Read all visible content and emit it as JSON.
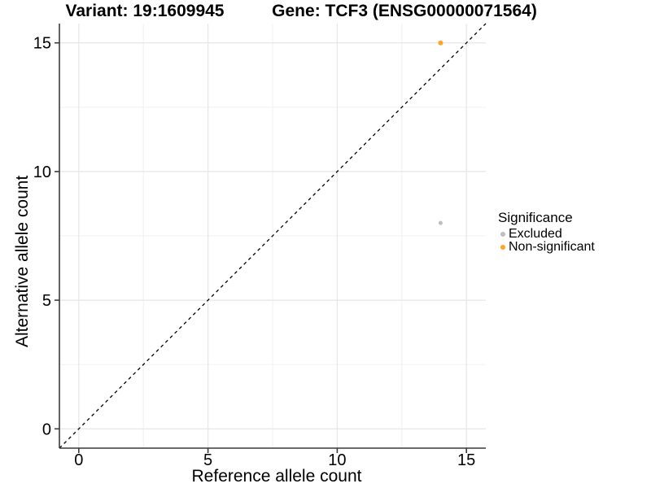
{
  "chart_data": {
    "type": "scatter",
    "titles": {
      "left": "Variant: 19:1609945",
      "right": "Gene: TCF3 (ENSG00000071564)"
    },
    "xlabel": "Reference allele count",
    "ylabel": "Alternative allele count",
    "xlim": [
      -0.75,
      15.75
    ],
    "ylim": [
      -0.75,
      15.75
    ],
    "xticks": [
      0,
      5,
      10,
      15
    ],
    "yticks": [
      0,
      5,
      10,
      15
    ],
    "xtick_labels": [
      "0",
      "5",
      "10",
      "15"
    ],
    "ytick_labels": [
      "0",
      "5",
      "10",
      "15"
    ],
    "minor_ticks": [
      2.5,
      7.5,
      12.5
    ],
    "grid": "major+minor",
    "identity_line": {
      "style": "dashed",
      "from": [
        -0.75,
        -0.75
      ],
      "to": [
        15.75,
        15.75
      ],
      "color": "#000000"
    },
    "series": [
      {
        "name": "Excluded",
        "color": "#BEBEBE",
        "point_radius": 2.5,
        "points": [
          [
            14,
            8
          ]
        ]
      },
      {
        "name": "Non-significant",
        "color": "#FFA424",
        "point_radius": 3,
        "points": [
          [
            14,
            15
          ]
        ]
      }
    ],
    "legend": {
      "title": "Significance",
      "position": "right",
      "entries": [
        {
          "label": "Excluded",
          "color": "#BEBEBE"
        },
        {
          "label": "Non-significant",
          "color": "#FFA424"
        }
      ]
    }
  },
  "style": {
    "background": "#FFFFFF",
    "grid_major": "#E6E6E6",
    "grid_minor": "#F0F0F0",
    "axis_line": "#3A3A3A",
    "text": "#000000"
  }
}
